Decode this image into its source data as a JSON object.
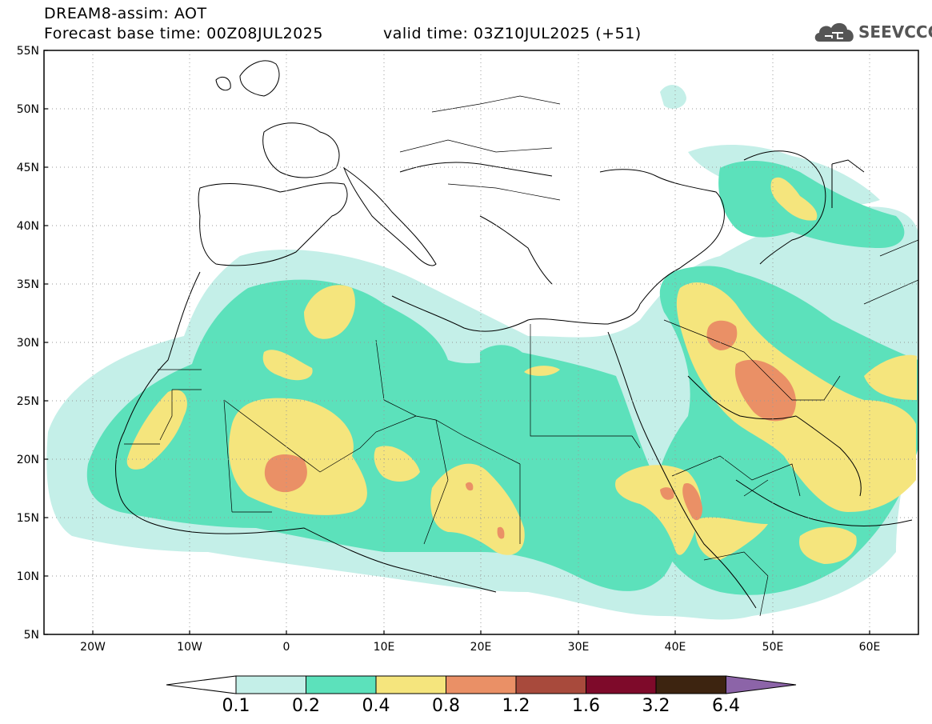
{
  "header": {
    "line1": "DREAM8-assim: AOT",
    "line2_left": "Forecast base time: 00Z08JUL2025",
    "line2_right": "valid time: 03Z10JUL2025 (+51)"
  },
  "logo": {
    "text": "SEEVCCC",
    "icon": "cloud-icon"
  },
  "map": {
    "lat_labels": [
      "55N",
      "50N",
      "45N",
      "40N",
      "35N",
      "30N",
      "25N",
      "20N",
      "15N",
      "10N",
      "5N"
    ],
    "lon_labels": [
      "20W",
      "10W",
      "0",
      "10E",
      "20E",
      "30E",
      "40E",
      "50E",
      "60E"
    ],
    "lat_range": [
      5,
      55
    ],
    "lon_range": [
      -25,
      65
    ]
  },
  "colorbar": {
    "levels": [
      "0.1",
      "0.2",
      "0.4",
      "0.8",
      "1.2",
      "1.6",
      "3.2",
      "6.4"
    ],
    "colors": [
      "#ffffff",
      "#c4efe8",
      "#5ce1bb",
      "#f5e57d",
      "#ea9066",
      "#a84a3c",
      "#7e0a2a",
      "#3d2410",
      "#8c64a8"
    ]
  }
}
